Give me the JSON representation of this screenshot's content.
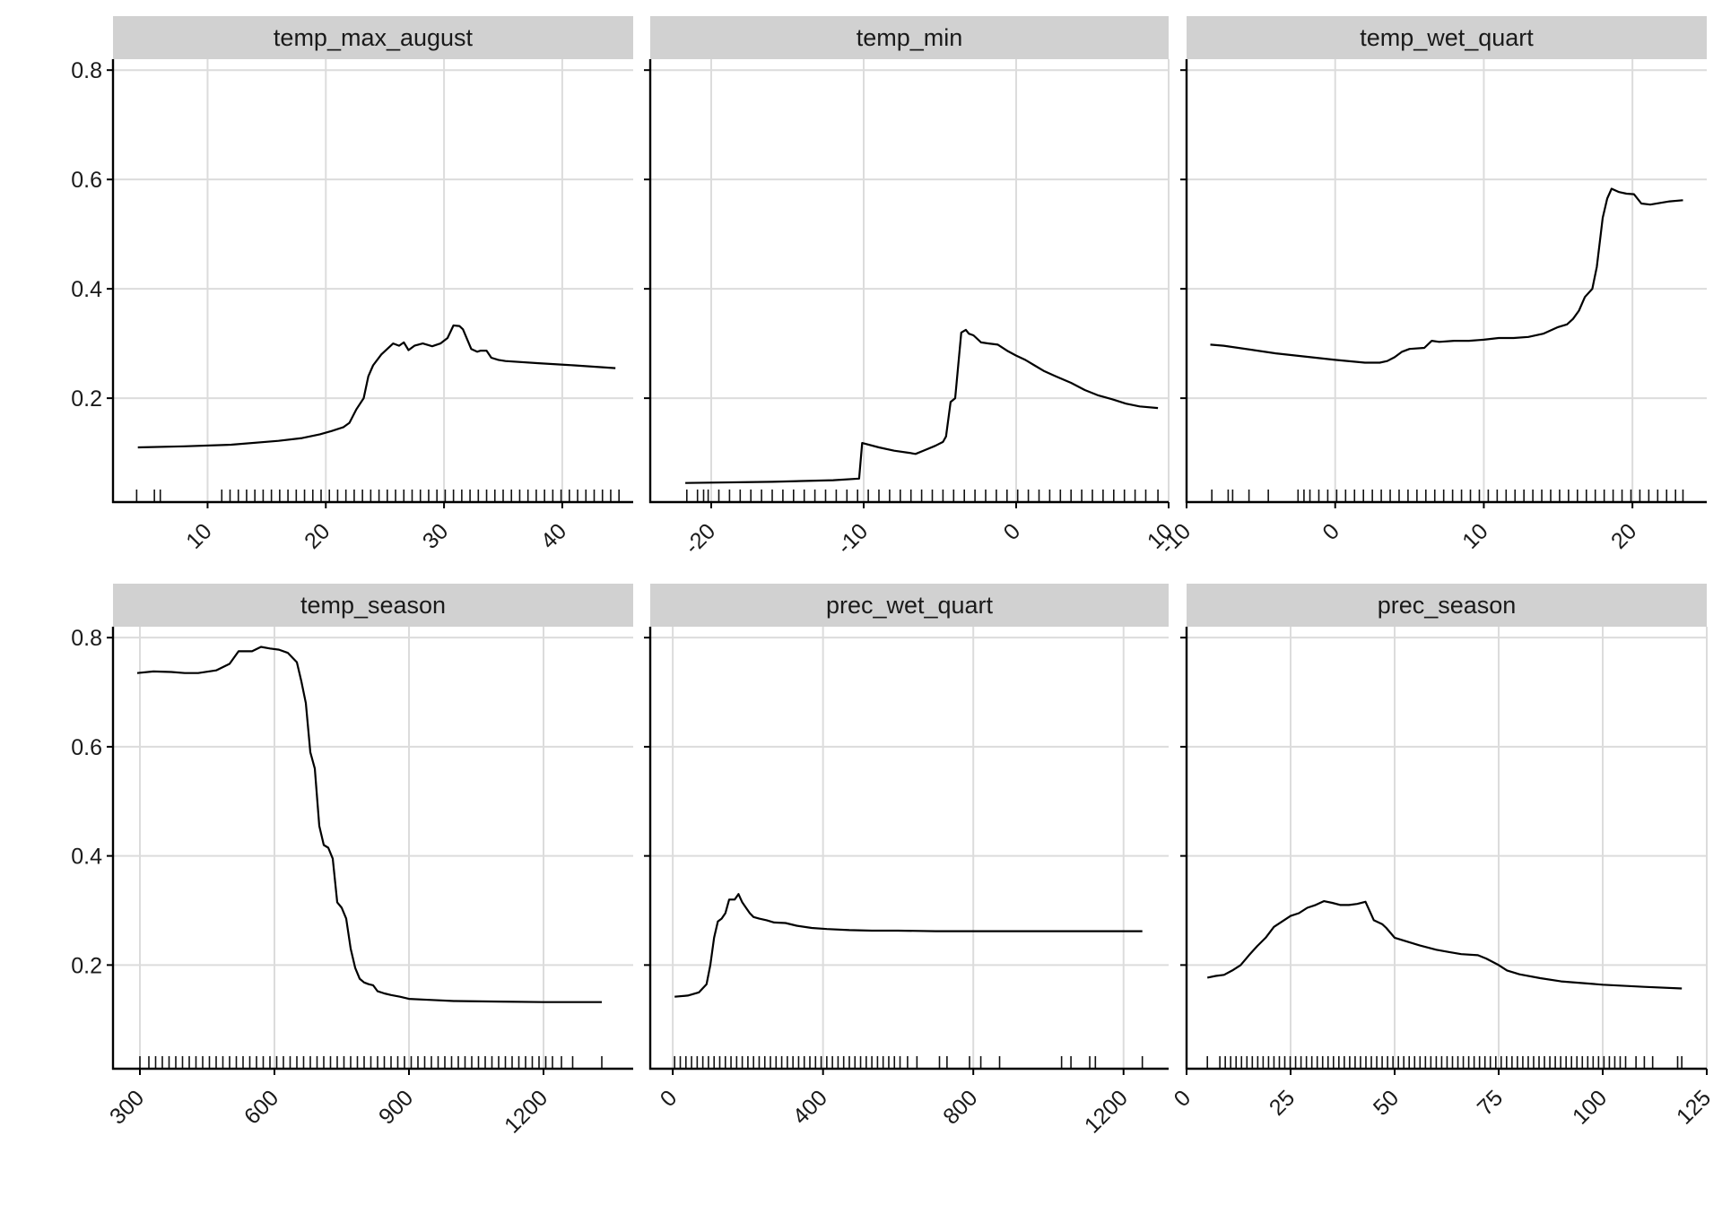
{
  "chart_data": [
    {
      "type": "line",
      "title": "temp_max_august",
      "xlim": [
        2,
        46
      ],
      "ylim": [
        0.01,
        0.82
      ],
      "x_ticks": [
        10,
        20,
        30,
        40
      ],
      "x_tick_labels": [
        "10",
        "20",
        "30",
        "40"
      ],
      "y_ticks": [
        0.2,
        0.4,
        0.6,
        0.8
      ],
      "y_tick_labels": [
        "0.2",
        "0.4",
        "0.6",
        "0.8"
      ],
      "grid": true,
      "series": [
        {
          "x": [
            4.1,
            8,
            12,
            16,
            18,
            19.5,
            20.5,
            21.5,
            22,
            22.6,
            23.2,
            23.6,
            24,
            24.7,
            25.2,
            25.7,
            26.2,
            26.6,
            27,
            27.5,
            28.2,
            29,
            29.7,
            30.3,
            30.8,
            31.3,
            31.6,
            32.3,
            32.8,
            33.1,
            33.6,
            34,
            34.6,
            35.2,
            38,
            41,
            44.5
          ],
          "y": [
            0.11,
            0.112,
            0.115,
            0.122,
            0.127,
            0.134,
            0.14,
            0.147,
            0.155,
            0.18,
            0.2,
            0.24,
            0.26,
            0.28,
            0.29,
            0.3,
            0.296,
            0.302,
            0.288,
            0.296,
            0.3,
            0.295,
            0.3,
            0.31,
            0.333,
            0.332,
            0.326,
            0.29,
            0.285,
            0.287,
            0.287,
            0.274,
            0.27,
            0.268,
            0.264,
            0.26,
            0.255
          ]
        }
      ],
      "rug": [
        4,
        5.5,
        6,
        11.2,
        11.9,
        12.6,
        13.3,
        14,
        14.7,
        15.4,
        16.1,
        16.8,
        17.5,
        18.2,
        18.9,
        19.6,
        20.3,
        21,
        21.7,
        22.4,
        23.1,
        23.8,
        24.5,
        25.2,
        25.9,
        26.6,
        27.3,
        28,
        28.7,
        29.4,
        30.1,
        30.8,
        31.5,
        32.2,
        32.9,
        33.6,
        34.3,
        35,
        35.7,
        36.4,
        37.1,
        37.8,
        38.5,
        39.2,
        39.9,
        40.6,
        41.3,
        42,
        42.7,
        43.4,
        44.1,
        44.8
      ]
    },
    {
      "type": "line",
      "title": "temp_min",
      "xlim": [
        -24,
        10
      ],
      "ylim": [
        0.01,
        0.82
      ],
      "x_ticks": [
        -20,
        -10,
        0,
        10
      ],
      "x_tick_labels": [
        "-20",
        "-10",
        "0",
        "10"
      ],
      "y_ticks": [
        0.2,
        0.4,
        0.6,
        0.8
      ],
      "y_tick_labels": [
        "0.2",
        "0.4",
        "0.6",
        "0.8"
      ],
      "grid": true,
      "series": [
        {
          "x": [
            -21.7,
            -16,
            -12,
            -10.3,
            -10.1,
            -9,
            -8,
            -7,
            -6.6,
            -6,
            -5.3,
            -4.8,
            -4.6,
            -4.3,
            -4,
            -3.6,
            -3.3,
            -3.1,
            -2.8,
            -2.3,
            -1.8,
            -1.2,
            -0.6,
            0,
            0.6,
            1.2,
            1.8,
            2.6,
            3.6,
            4.5,
            5.4,
            6.3,
            7.2,
            8.1,
            9.3
          ],
          "y": [
            0.045,
            0.047,
            0.05,
            0.053,
            0.118,
            0.11,
            0.104,
            0.1,
            0.098,
            0.105,
            0.113,
            0.12,
            0.13,
            0.193,
            0.2,
            0.32,
            0.325,
            0.318,
            0.315,
            0.302,
            0.3,
            0.298,
            0.287,
            0.278,
            0.27,
            0.26,
            0.25,
            0.24,
            0.228,
            0.215,
            0.205,
            0.198,
            0.19,
            0.185,
            0.182
          ]
        }
      ],
      "rug": [
        -21.6,
        -20.9,
        -20.5,
        -20.2,
        -19.5,
        -18.8,
        -18.1,
        -17.4,
        -16.7,
        -16,
        -15.3,
        -14.6,
        -13.9,
        -13.2,
        -12.5,
        -11.8,
        -11.1,
        -10.4,
        -9.7,
        -9,
        -8.3,
        -7.6,
        -6.9,
        -6.2,
        -5.5,
        -4.8,
        -4.1,
        -3.4,
        -2.7,
        -2,
        -1.3,
        -0.6,
        0.1,
        0.8,
        1.5,
        2.2,
        2.9,
        3.6,
        4.3,
        5,
        5.7,
        6.4,
        7.1,
        7.8,
        8.5,
        9.3
      ]
    },
    {
      "type": "line",
      "title": "temp_wet_quart",
      "xlim": [
        -10,
        25
      ],
      "ylim": [
        0.01,
        0.82
      ],
      "x_ticks": [
        -10,
        0,
        10,
        20
      ],
      "x_tick_labels": [
        "-10",
        "0",
        "10",
        "20"
      ],
      "y_ticks": [
        0.2,
        0.4,
        0.6,
        0.8
      ],
      "y_tick_labels": [
        "0.2",
        "0.4",
        "0.6",
        "0.8"
      ],
      "grid": true,
      "series": [
        {
          "x": [
            -8.4,
            -7.5,
            -4,
            0,
            2,
            3,
            3.5,
            4,
            4.5,
            5,
            6,
            6.5,
            7,
            8,
            9,
            10,
            11,
            12,
            13,
            14,
            15,
            15.6,
            16,
            16.4,
            16.8,
            17.3,
            17.6,
            18,
            18.3,
            18.6,
            19.1,
            19.6,
            20.1,
            20.6,
            21.2,
            22.5,
            23.4
          ],
          "y": [
            0.298,
            0.296,
            0.282,
            0.27,
            0.265,
            0.265,
            0.268,
            0.275,
            0.285,
            0.29,
            0.292,
            0.305,
            0.303,
            0.305,
            0.305,
            0.307,
            0.31,
            0.31,
            0.312,
            0.318,
            0.33,
            0.335,
            0.345,
            0.36,
            0.385,
            0.4,
            0.44,
            0.53,
            0.565,
            0.583,
            0.577,
            0.574,
            0.573,
            0.556,
            0.554,
            0.56,
            0.562
          ]
        }
      ],
      "rug": [
        -8.3,
        -7.2,
        -6.9,
        -5.8,
        -4.5,
        -2.5,
        -2.1,
        -1.7,
        -1.1,
        -0.5,
        0.1,
        0.7,
        1.3,
        1.9,
        2.5,
        3.1,
        3.7,
        4.3,
        4.9,
        5.5,
        6.1,
        6.7,
        7.3,
        7.9,
        8.5,
        9.1,
        9.7,
        10.3,
        10.9,
        11.5,
        12.1,
        12.7,
        13.3,
        13.9,
        14.5,
        15.1,
        15.7,
        16.3,
        16.9,
        17.5,
        18.1,
        18.7,
        19.3,
        19.9,
        20.5,
        21.1,
        21.7,
        22.3,
        22.9,
        23.4
      ]
    },
    {
      "type": "line",
      "title": "temp_season",
      "xlim": [
        240,
        1400
      ],
      "ylim": [
        0.01,
        0.82
      ],
      "x_ticks": [
        300,
        600,
        900,
        1200
      ],
      "x_tick_labels": [
        "300",
        "600",
        "900",
        "1200"
      ],
      "y_ticks": [
        0.2,
        0.4,
        0.6,
        0.8
      ],
      "y_tick_labels": [
        "0.2",
        "0.4",
        "0.6",
        "0.8"
      ],
      "grid": true,
      "series": [
        {
          "x": [
            294,
            330,
            370,
            400,
            430,
            470,
            500,
            520,
            535,
            550,
            570,
            590,
            610,
            630,
            650,
            660,
            670,
            680,
            690,
            700,
            710,
            720,
            730,
            740,
            750,
            760,
            770,
            780,
            790,
            800,
            810,
            820,
            830,
            845,
            860,
            880,
            900,
            950,
            1000,
            1100,
            1200,
            1300,
            1330
          ],
          "y": [
            0.735,
            0.738,
            0.737,
            0.735,
            0.735,
            0.74,
            0.752,
            0.775,
            0.775,
            0.775,
            0.783,
            0.78,
            0.778,
            0.772,
            0.755,
            0.72,
            0.68,
            0.59,
            0.56,
            0.455,
            0.42,
            0.415,
            0.395,
            0.315,
            0.305,
            0.285,
            0.23,
            0.195,
            0.175,
            0.168,
            0.165,
            0.163,
            0.152,
            0.148,
            0.145,
            0.142,
            0.138,
            0.136,
            0.134,
            0.133,
            0.132,
            0.132,
            0.132
          ]
        }
      ],
      "rug": [
        300,
        320,
        335,
        350,
        365,
        380,
        395,
        410,
        425,
        440,
        455,
        470,
        485,
        500,
        515,
        530,
        545,
        560,
        575,
        590,
        605,
        620,
        635,
        650,
        665,
        680,
        695,
        710,
        725,
        740,
        755,
        770,
        785,
        800,
        815,
        830,
        845,
        860,
        875,
        890,
        905,
        920,
        935,
        950,
        965,
        980,
        995,
        1010,
        1025,
        1040,
        1055,
        1070,
        1085,
        1100,
        1115,
        1130,
        1145,
        1160,
        1175,
        1190,
        1205,
        1220,
        1240,
        1265,
        1330
      ]
    },
    {
      "type": "line",
      "title": "prec_wet_quart",
      "xlim": [
        -60,
        1320
      ],
      "ylim": [
        0.01,
        0.82
      ],
      "x_ticks": [
        0,
        400,
        800,
        1200
      ],
      "x_tick_labels": [
        "0",
        "400",
        "800",
        "1200"
      ],
      "y_ticks": [
        0.2,
        0.4,
        0.6,
        0.8
      ],
      "y_tick_labels": [
        "0.2",
        "0.4",
        "0.6",
        "0.8"
      ],
      "grid": true,
      "series": [
        {
          "x": [
            5,
            40,
            70,
            90,
            100,
            110,
            120,
            130,
            140,
            150,
            165,
            175,
            185,
            195,
            205,
            215,
            230,
            250,
            270,
            300,
            330,
            370,
            410,
            470,
            530,
            600,
            700,
            900,
            1100,
            1250
          ],
          "y": [
            0.142,
            0.144,
            0.15,
            0.165,
            0.2,
            0.25,
            0.28,
            0.285,
            0.295,
            0.32,
            0.32,
            0.33,
            0.315,
            0.305,
            0.295,
            0.288,
            0.285,
            0.282,
            0.278,
            0.277,
            0.272,
            0.268,
            0.266,
            0.264,
            0.263,
            0.263,
            0.262,
            0.262,
            0.262,
            0.262
          ]
        }
      ],
      "rug": [
        5,
        20,
        35,
        50,
        65,
        80,
        95,
        110,
        125,
        140,
        155,
        170,
        185,
        200,
        215,
        230,
        245,
        260,
        275,
        290,
        305,
        320,
        335,
        350,
        365,
        380,
        395,
        410,
        425,
        440,
        455,
        470,
        485,
        500,
        515,
        530,
        545,
        560,
        575,
        590,
        605,
        625,
        650,
        710,
        730,
        790,
        820,
        870,
        1035,
        1060,
        1110,
        1125,
        1250
      ]
    },
    {
      "type": "line",
      "title": "prec_season",
      "xlim": [
        0,
        125
      ],
      "ylim": [
        0.01,
        0.82
      ],
      "x_ticks": [
        0,
        25,
        50,
        75,
        100,
        125
      ],
      "x_tick_labels": [
        "0",
        "25",
        "50",
        "75",
        "100",
        "125"
      ],
      "y_ticks": [
        0.2,
        0.4,
        0.6,
        0.8
      ],
      "y_tick_labels": [
        "0.2",
        "0.4",
        "0.6",
        "0.8"
      ],
      "grid": true,
      "series": [
        {
          "x": [
            5,
            7,
            9,
            11,
            13,
            15,
            17,
            19,
            21,
            23,
            25,
            27,
            29,
            31,
            33,
            35,
            37,
            39,
            41,
            43,
            45,
            47,
            48,
            50,
            53,
            56,
            60,
            63,
            66,
            70,
            72,
            75,
            77,
            80,
            85,
            90,
            100,
            110,
            119
          ],
          "y": [
            0.177,
            0.18,
            0.182,
            0.19,
            0.2,
            0.218,
            0.235,
            0.25,
            0.27,
            0.28,
            0.29,
            0.295,
            0.305,
            0.31,
            0.317,
            0.314,
            0.31,
            0.31,
            0.312,
            0.316,
            0.282,
            0.275,
            0.268,
            0.25,
            0.243,
            0.236,
            0.228,
            0.224,
            0.22,
            0.218,
            0.212,
            0.2,
            0.19,
            0.183,
            0.176,
            0.17,
            0.164,
            0.16,
            0.157
          ]
        }
      ],
      "rug": [
        5,
        8,
        9.3,
        10.6,
        11.9,
        13.2,
        14.5,
        15.8,
        17.1,
        18.4,
        19.7,
        21,
        22.3,
        23.6,
        24.9,
        26.2,
        27.5,
        28.8,
        30.1,
        31.4,
        32.7,
        34,
        35.3,
        36.6,
        37.9,
        39.2,
        40.5,
        41.8,
        43.1,
        44.4,
        45.7,
        47,
        48.3,
        49.6,
        50.9,
        52.2,
        53.5,
        54.8,
        56.1,
        57.4,
        58.7,
        60,
        61.3,
        62.6,
        63.9,
        65.2,
        66.5,
        67.8,
        69.1,
        70.4,
        71.7,
        73,
        74.3,
        75.6,
        76.9,
        78.2,
        79.5,
        80.8,
        82.1,
        83.4,
        84.7,
        86,
        87.3,
        88.6,
        89.9,
        91.2,
        92.5,
        93.8,
        95.1,
        96.4,
        97.7,
        99,
        100.3,
        101.6,
        102.9,
        104.2,
        105.5,
        108,
        110,
        112,
        118,
        119
      ]
    }
  ]
}
